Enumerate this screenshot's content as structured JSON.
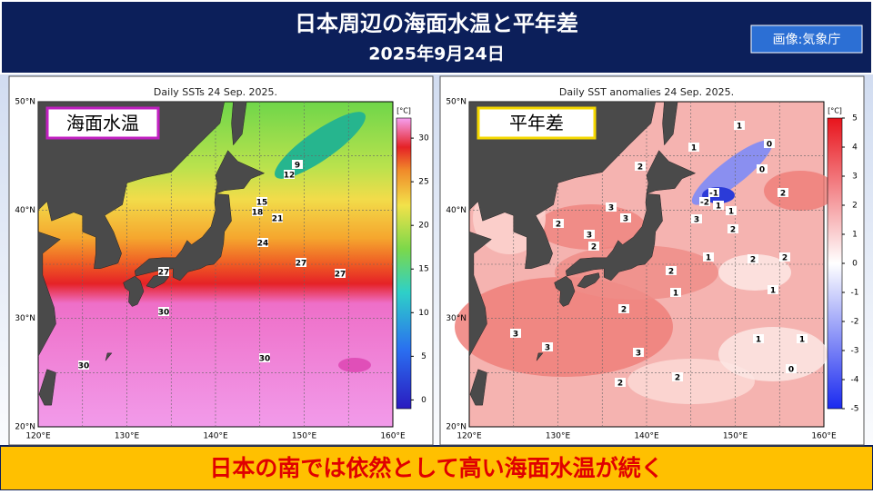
{
  "header": {
    "title": "日本周辺の海面水温と平年差",
    "date": "2025年9月24日",
    "credit": "画像:気象庁"
  },
  "maps": [
    {
      "chart_title": "Daily SSTs 24 Sep. 2025.",
      "label": "海面水温",
      "unit": "[°C]",
      "colorbar_ticks": [
        0,
        5,
        10,
        15,
        20,
        25,
        30
      ],
      "lat_labels": [
        "50°N",
        "40°N",
        "30°N",
        "20°N"
      ],
      "lon_labels": [
        "120°E",
        "130°E",
        "140°E",
        "150°E",
        "160°E"
      ],
      "contour_labels": [
        9,
        12,
        15,
        18,
        21,
        24,
        27,
        27,
        27,
        30,
        30,
        30
      ]
    },
    {
      "chart_title": "Daily SST anomalies 24 Sep. 2025.",
      "label": "平年差",
      "unit": "[°C]",
      "colorbar_ticks": [
        -5,
        -4,
        -3,
        -2,
        -1,
        0,
        1,
        2,
        3,
        4,
        5
      ],
      "lat_labels": [
        "50°N",
        "40°N",
        "30°N",
        "20°N"
      ],
      "lon_labels": [
        "120°E",
        "130°E",
        "140°E",
        "150°E",
        "160°E"
      ],
      "contour_labels": [
        2,
        3,
        3,
        2,
        3,
        2,
        2,
        1,
        1,
        2,
        3,
        3,
        3,
        2,
        2,
        1,
        1,
        0,
        0,
        -1,
        -2,
        1,
        1,
        3,
        2,
        2,
        2,
        2,
        1,
        1,
        1,
        0
      ]
    }
  ],
  "footer": {
    "text": "日本の南では依然として高い海面水温が続く"
  }
}
